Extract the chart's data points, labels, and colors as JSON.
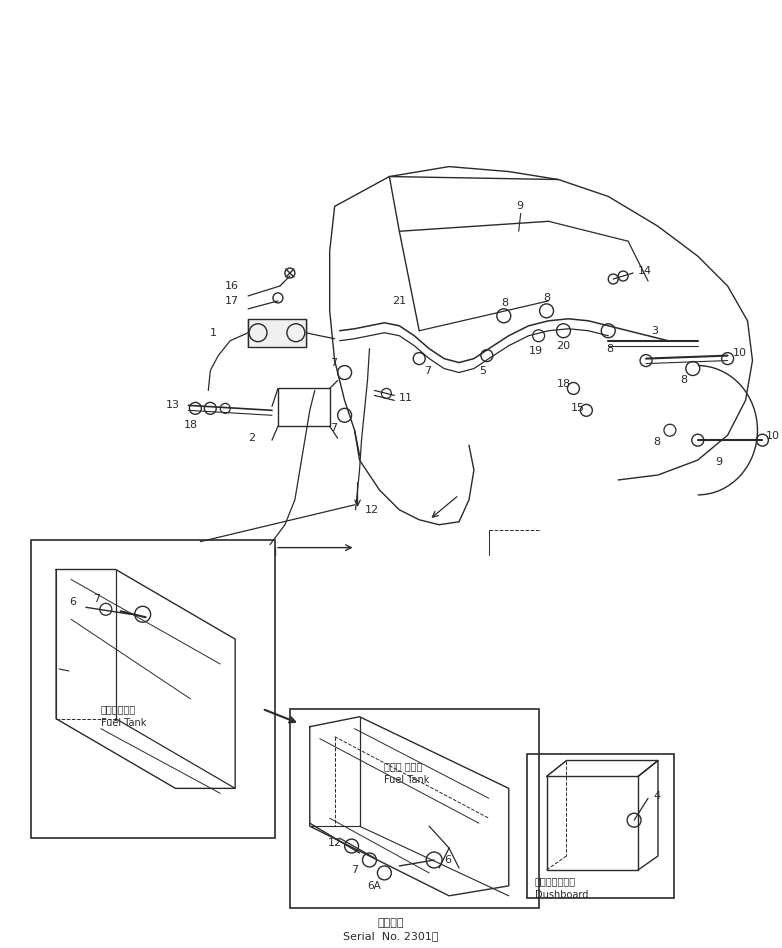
{
  "bg_color": "#ffffff",
  "line_color": "#2a2a2a",
  "fig_width": 7.82,
  "fig_height": 9.48,
  "dpi": 100,
  "fuel_tank_jp": "フェルタンク",
  "fuel_tank_en": "Fuel Tank",
  "fuel_tank_jp2": "フェル タンク",
  "fuel_tank_en2": "Fuel Tank",
  "dashboard_jp": "ダッシュボード",
  "dashboard_en": "Dushboard",
  "bottom_text1": "適用号数",
  "bottom_text2": "Serial  No. 2301～"
}
